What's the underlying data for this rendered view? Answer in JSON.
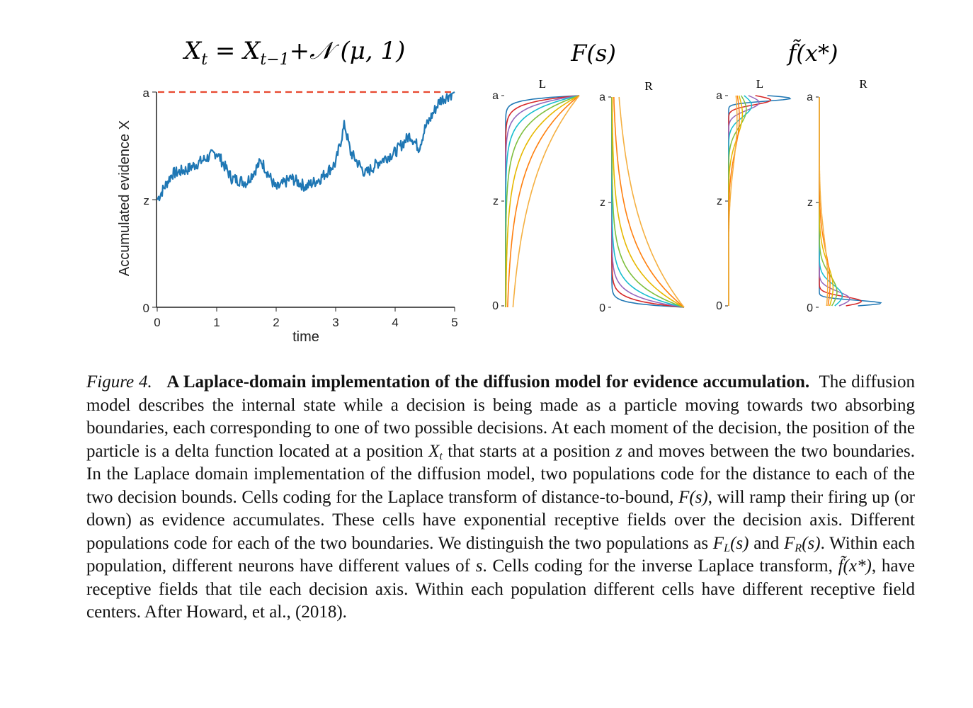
{
  "panels": {
    "walk": {
      "equation": {
        "lhs": "X",
        "lhs_sub": "t",
        "rhs1": "X",
        "rhs1_sub": "t−1",
        "rhs2": "+𝒩 (μ, 1)"
      },
      "ylabel": "Accumulated evidence X",
      "xlabel": "time",
      "yticks": [
        "a",
        "z",
        "0"
      ],
      "xticks": [
        "0",
        "1",
        "2",
        "3",
        "4",
        "5"
      ],
      "boundary_color": "#e8482f",
      "trace_color": "#1f77b4"
    },
    "F": {
      "title": "F(s)",
      "left_label": "L",
      "right_label": "R",
      "yticks": [
        "a",
        "z",
        "0"
      ]
    },
    "f": {
      "title": "f̃(x*)",
      "left_label": "L",
      "right_label": "R",
      "yticks": [
        "a",
        "z",
        "0"
      ]
    }
  },
  "chart_data": [
    {
      "type": "line",
      "title": "Xt = Xt−1 + 𝒩 (μ, 1)",
      "xlabel": "time",
      "ylabel": "Accumulated evidence X",
      "xlim": [
        0,
        5
      ],
      "ylim": [
        0,
        1
      ],
      "ytick_labels": [
        "0",
        "z",
        "a"
      ],
      "z": 0.5,
      "a": 1.0,
      "series": [
        {
          "x": [
            0,
            0.25,
            0.5,
            0.75,
            1.0,
            1.25,
            1.5,
            1.75,
            2.0,
            2.25,
            2.5,
            2.75,
            3.0,
            3.15,
            3.25,
            3.5,
            3.75,
            4.0,
            4.25,
            4.4,
            4.5,
            4.75,
            5.0
          ],
          "values": [
            0.5,
            0.62,
            0.64,
            0.68,
            0.72,
            0.6,
            0.58,
            0.68,
            0.55,
            0.6,
            0.56,
            0.6,
            0.67,
            0.85,
            0.72,
            0.62,
            0.68,
            0.72,
            0.8,
            0.74,
            0.83,
            0.96,
            1.0
          ]
        }
      ],
      "annotations": [
        "a (dashed boundary)"
      ]
    },
    {
      "type": "line",
      "title": "F(s)",
      "panels": [
        "L",
        "R"
      ],
      "ytick_labels": [
        "0",
        "z",
        "a"
      ],
      "description_values": {
        "n_curves": 8
      }
    },
    {
      "type": "line",
      "title": "f̃(x*)",
      "panels": [
        "L",
        "R"
      ],
      "ytick_labels": [
        "0",
        "z",
        "a"
      ],
      "description_values": {
        "n_curves": 8
      }
    }
  ],
  "colors": [
    "#1f77b4",
    "#d62728",
    "#9467bd",
    "#17becf",
    "#7fbf3f",
    "#e6b800",
    "#ff7f0e",
    "#f5b041"
  ],
  "caption": {
    "label": "Figure 4.",
    "title": "A Laplace-domain implementation of the diffusion model for evidence accumulation.",
    "p1": "The diffusion model describes the internal state while a decision is being made as a particle moving towards two absorbing boundaries, each corresponding to one of two possible decisions. At each moment of the decision, the position of the particle is a delta function located at a position",
    "x": "X",
    "t": "t",
    "p2": "that starts at a position",
    "z": "z",
    "p3": "and moves between the two boundaries. In the Laplace domain implementation of the diffusion model, two populations code for the distance to each of the two decision bounds. Cells coding for the Laplace transform of distance-to-bound,",
    "Fs": "F(s)",
    "p4": ", will ramp their firing up (or down) as evidence accumulates. These cells have exponential receptive fields over the decision axis. Different populations code for each of the two boundaries. We distinguish the two populations as",
    "FL": "F",
    "L": "L",
    "s1": "(s)",
    "and": "and",
    "FR": "F",
    "R": "R",
    "s2": "(s)",
    "p5": ". Within each population, different neurons have different values of",
    "s": "s",
    "p6": ". Cells coding for the inverse Laplace transform,",
    "fx": "f̃(x*)",
    "p7": ", have receptive fields that tile each decision axis. Within each population different cells have different receptive field centers. After Howard, et al., (2018)."
  }
}
